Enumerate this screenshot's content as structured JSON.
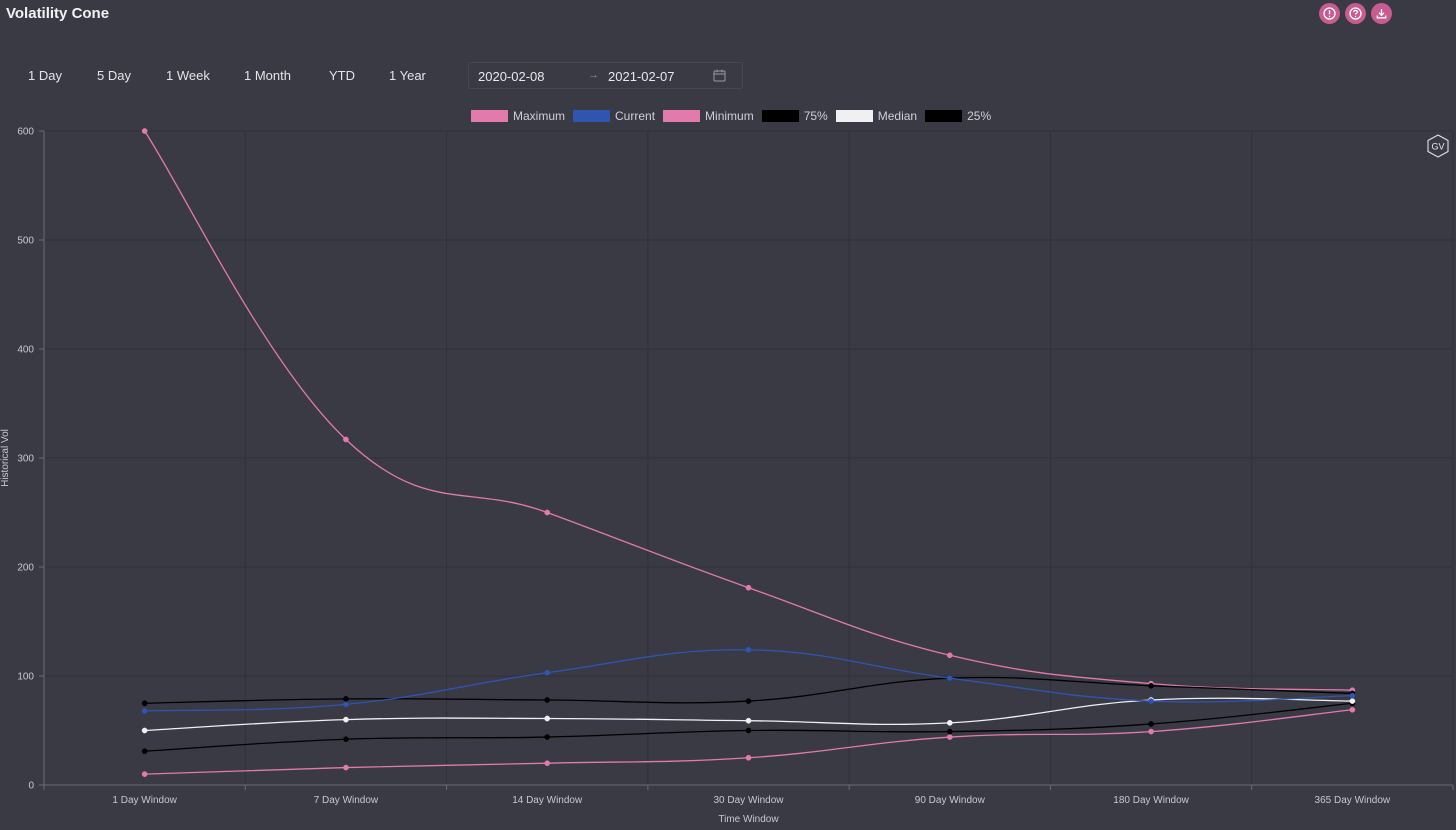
{
  "header": {
    "title": "Volatility Cone"
  },
  "toolbar": {
    "icons": [
      "info-icon",
      "help-icon",
      "download-icon"
    ],
    "ranges": [
      {
        "label": "1 Day"
      },
      {
        "label": "5 Day"
      },
      {
        "label": "1 Week"
      },
      {
        "label": "1 Month"
      },
      {
        "label": "YTD"
      },
      {
        "label": "1 Year"
      }
    ],
    "date_start": "2020-02-08",
    "date_end": "2021-02-07",
    "date_separator": "→"
  },
  "badge": {
    "label": "GV"
  },
  "chart_data": {
    "type": "line",
    "title": "",
    "xlabel": "Time Window",
    "ylabel": "Historical Vol",
    "ylim": [
      0,
      600
    ],
    "yticks": [
      0,
      100,
      200,
      300,
      400,
      500,
      600
    ],
    "grid": true,
    "legend_position": "top-center",
    "categories": [
      "1 Day Window",
      "7 Day Window",
      "14 Day Window",
      "30 Day Window",
      "90 Day Window",
      "180 Day Window",
      "365 Day Window"
    ],
    "series": [
      {
        "name": "Maximum",
        "color": "#e27aae",
        "values": [
          600,
          317,
          250,
          181,
          119,
          93,
          87
        ]
      },
      {
        "name": "Current",
        "color": "#2f55b0",
        "values": [
          68,
          74,
          103,
          124,
          98,
          77,
          82
        ]
      },
      {
        "name": "Minimum",
        "color": "#e27aae",
        "values": [
          10,
          16,
          20,
          25,
          44,
          49,
          69
        ]
      },
      {
        "name": "75%",
        "color": "#000000",
        "values": [
          75,
          79,
          78,
          77,
          98,
          91,
          84
        ]
      },
      {
        "name": "Median",
        "color": "#f0f0f2",
        "values": [
          50,
          60,
          61,
          59,
          57,
          78,
          77
        ]
      },
      {
        "name": "25%",
        "color": "#000000",
        "values": [
          31,
          42,
          44,
          50,
          49,
          56,
          75
        ]
      }
    ]
  }
}
